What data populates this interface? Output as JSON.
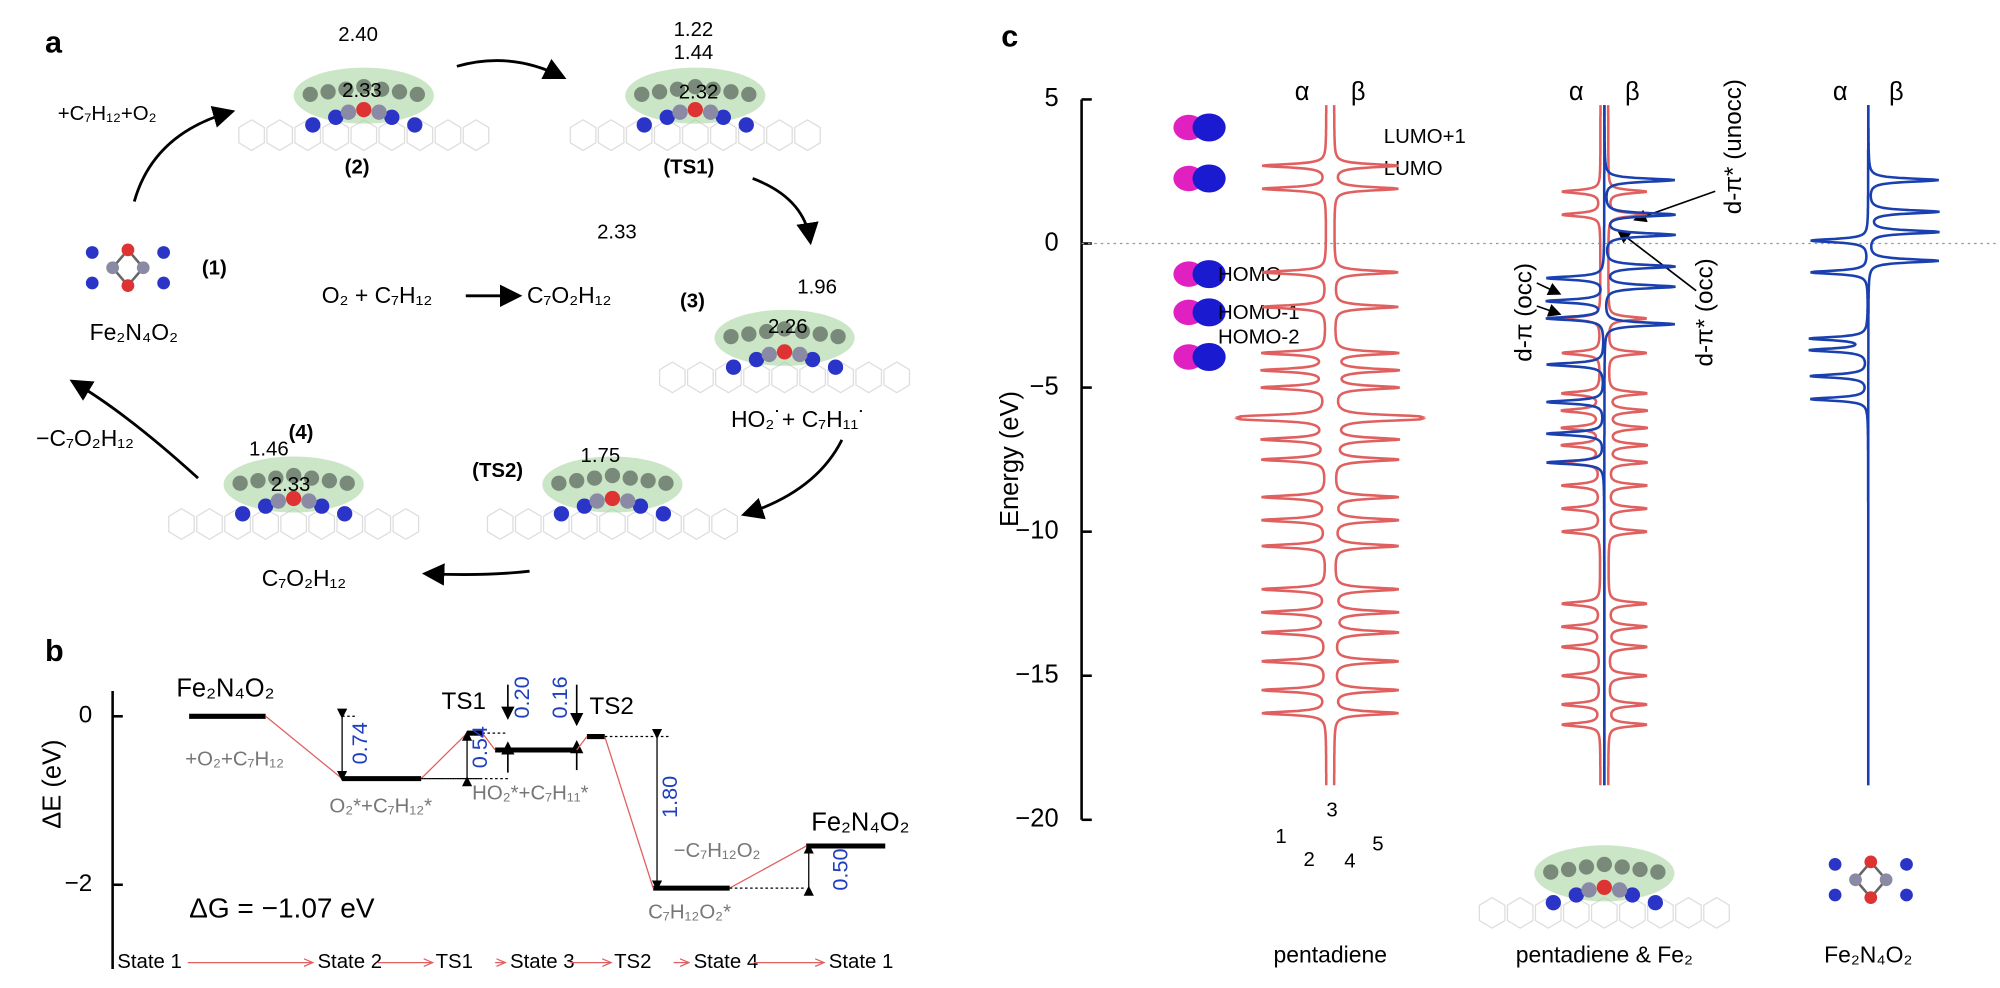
{
  "panel_a": {
    "label": "a",
    "step_in": "+C₇H₁₂+O₂",
    "d_2_top": "2.40",
    "d_2_mid": "2.33",
    "state_2": "(2)",
    "d_ts1_a": "1.22",
    "d_ts1_b": "1.44",
    "d_ts1_mid": "2.32",
    "state_ts1": "(TS1)",
    "d_free": "2.33",
    "reactants": "O₂ + C₇H₁₂",
    "product": "C₇O₂H₁₂",
    "state_1": "(1)",
    "catalyst": "Fe₂N₄O₂",
    "state_3": "(3)",
    "d_3_top": "1.96",
    "d_3_mid": "2.26",
    "radicals": "HO₂˙+ C₇H₁₁˙",
    "state_ts2": "(TS2)",
    "d_ts2": "1.75",
    "state_4": "(4)",
    "d_4_top": "1.46",
    "d_4_mid": "2.33",
    "state_4_name": "C₇O₂H₁₂",
    "step_out": "−C₇O₂H₁₂"
  },
  "panel_b": {
    "label": "b",
    "ylabel": "ΔE (eV)",
    "ylim": [
      -3.0,
      0.3
    ],
    "yticks": [
      0,
      {
        "value": -2,
        "label": "−2"
      }
    ],
    "levels": [
      0,
      -0.74,
      -0.2,
      -0.4,
      -0.24,
      -2.04,
      -1.54
    ],
    "texts": {
      "start": "Fe₂N₄O₂",
      "add": "+O₂+C₇H₁₂",
      "s2": "O₂*+C₇H₁₂*",
      "ts1": "TS1",
      "s3": "HO₂*+C₇H₁₁*",
      "ts2": "TS2",
      "desorb": "−C₇H₁₂O₂",
      "s4": "C₇H₁₂O₂*",
      "end": "Fe₂N₄O₂",
      "dG": "ΔG = −1.07 eV"
    },
    "gaps": [
      "0.74",
      "0.54",
      "0.20",
      "0.16",
      "1.80",
      "0.50"
    ],
    "flow": [
      "State 1",
      "State 2",
      "TS1",
      "State 3",
      "TS2",
      "State 4",
      "State 1"
    ]
  },
  "panel_c": {
    "label": "c",
    "ylabel": "Energy (eV)",
    "ylim": [
      -20,
      5
    ],
    "yticks": [
      5,
      0,
      {
        "value": -5,
        "label": "−5"
      },
      {
        "value": -10,
        "label": "−10"
      },
      {
        "value": -15,
        "label": "−15"
      },
      {
        "value": -20,
        "label": "−20"
      }
    ],
    "columns": [
      {
        "name": "pentadiene",
        "alpha": "α",
        "beta": "β",
        "red_peaks": [
          2.7,
          1.9,
          -1.0,
          -2.2,
          -3.8,
          -4.4,
          -5.0,
          -6.0,
          -6.1,
          -6.8,
          -7.5,
          -8.8,
          -9.6,
          -10.5,
          -12.0,
          -12.8,
          -13.5,
          -14.5,
          -15.5,
          -16.3
        ]
      },
      {
        "name": "pentadiene & Fe₂",
        "alpha": "α",
        "beta": "β",
        "red_peaks": [
          1.8,
          1.0,
          -2.6,
          -3.8,
          -5.2,
          -5.8,
          -6.4,
          -7.0,
          -7.6,
          -8.4,
          -9.2,
          -10.0,
          -12.5,
          -13.3,
          -14.0,
          -15.0,
          -16.0,
          -16.7
        ],
        "blue_alpha": [
          -1.2,
          -2.0,
          -2.6,
          -4.2,
          -5.5,
          -6.6,
          -7.6
        ],
        "blue_beta": [
          2.2,
          1.0,
          0.3,
          -0.8,
          -1.5,
          -2.8
        ]
      },
      {
        "name": "Fe₂N₄O₂",
        "alpha": "α",
        "beta": "β",
        "blue_alpha": [
          0.1,
          -1.0,
          -3.3,
          -3.7,
          -4.6,
          -5.4
        ],
        "blue_beta": [
          2.2,
          1.1,
          0.4,
          -0.6
        ]
      }
    ],
    "orbitals": [
      "LUMO+1",
      "LUMO",
      "HOMO",
      "HOMO-1",
      "HOMO-2"
    ],
    "states": [
      "d-π* (unocc)",
      "d-π (occ)",
      "d-π* (occ)"
    ],
    "atoms": [
      "1",
      "2",
      "3",
      "4",
      "5"
    ]
  }
}
